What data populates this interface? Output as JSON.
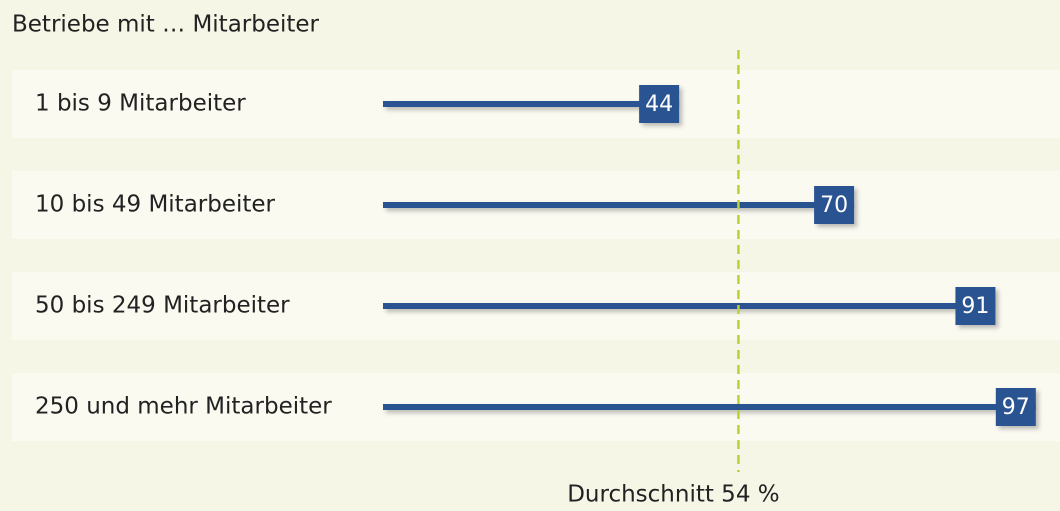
{
  "chart_data": {
    "type": "bar",
    "title": "Betriebe mit … Mitarbeiter",
    "categories": [
      "1 bis 9 Mitarbeiter",
      "10 bis 49 Mitarbeiter",
      "50 bis 249 Mitarbeiter",
      "250 und mehr Mitarbeiter"
    ],
    "values": [
      44,
      70,
      91,
      97
    ],
    "color": "#2b5291",
    "average": {
      "value": 54,
      "label": "Durchschnitt 54 %",
      "color": "#b7d334"
    }
  }
}
